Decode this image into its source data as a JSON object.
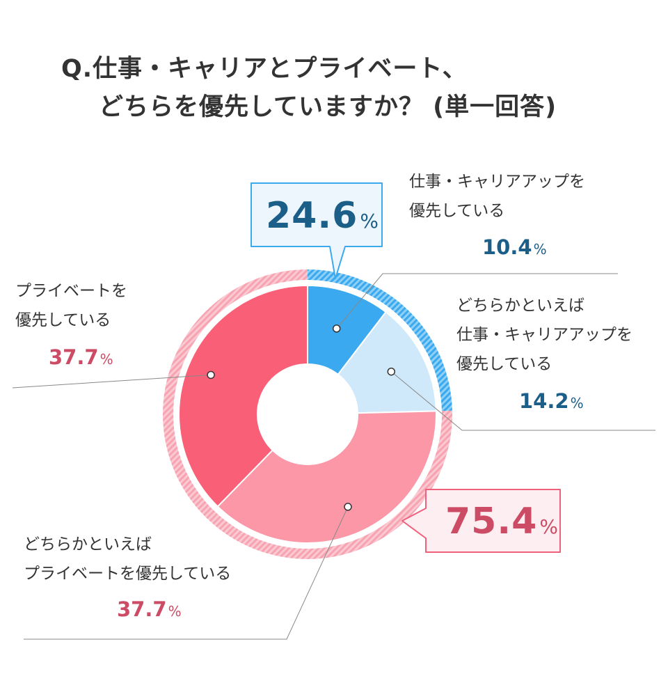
{
  "title": {
    "line1": "Q.仕事・キャリアとプライベート、",
    "line2": "どちらを優先していますか？ (単一回答)"
  },
  "chart_data": {
    "type": "pie",
    "donut": true,
    "slices": [
      {
        "label_line1": "仕事・キャリアアップを",
        "label_line2": "優先している",
        "label_line3": "",
        "value": 10.4,
        "value_text": "10.4",
        "color": "#3aa9ef"
      },
      {
        "label_line1": "どちらかといえば",
        "label_line2": "仕事・キャリアアップを",
        "label_line3": "優先している",
        "value": 14.2,
        "value_text": "14.2",
        "color": "#cfe9fb"
      },
      {
        "label_line1": "どちらかといえば",
        "label_line2": "プライベートを優先している",
        "label_line3": "",
        "value": 37.7,
        "value_text": "37.7",
        "color": "#fb97a6"
      },
      {
        "label_line1": "プライベートを",
        "label_line2": "優先している",
        "label_line3": "",
        "value": 37.7,
        "value_text": "37.7",
        "color": "#fa5f78"
      }
    ],
    "groups": [
      {
        "value": 24.6,
        "value_text": "24.6",
        "color": "#1b5e88",
        "ring_color": "#3aa9ef"
      },
      {
        "value": 75.4,
        "value_text": "75.4",
        "color": "#cc4c65",
        "ring_color": "#f8a5b2"
      }
    ],
    "unit": "%"
  }
}
